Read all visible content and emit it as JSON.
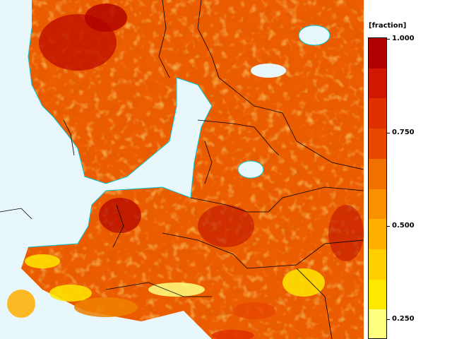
{
  "map": {
    "palette": {
      "sea": "#e8f7fb",
      "coast": "#00c8d8",
      "border": "#000000",
      "land_low": "#ffff99"
    }
  },
  "legend": {
    "unit_label": "[fraction]",
    "tick_labels": [
      "1.000",
      "0.750",
      "0.500",
      "0.250"
    ],
    "colors_top_to_bottom": [
      "#b00000",
      "#d01800",
      "#e03000",
      "#e84800",
      "#f07000",
      "#f89000",
      "#ffb000",
      "#ffd000",
      "#ffe800",
      "#ffff80"
    ]
  }
}
